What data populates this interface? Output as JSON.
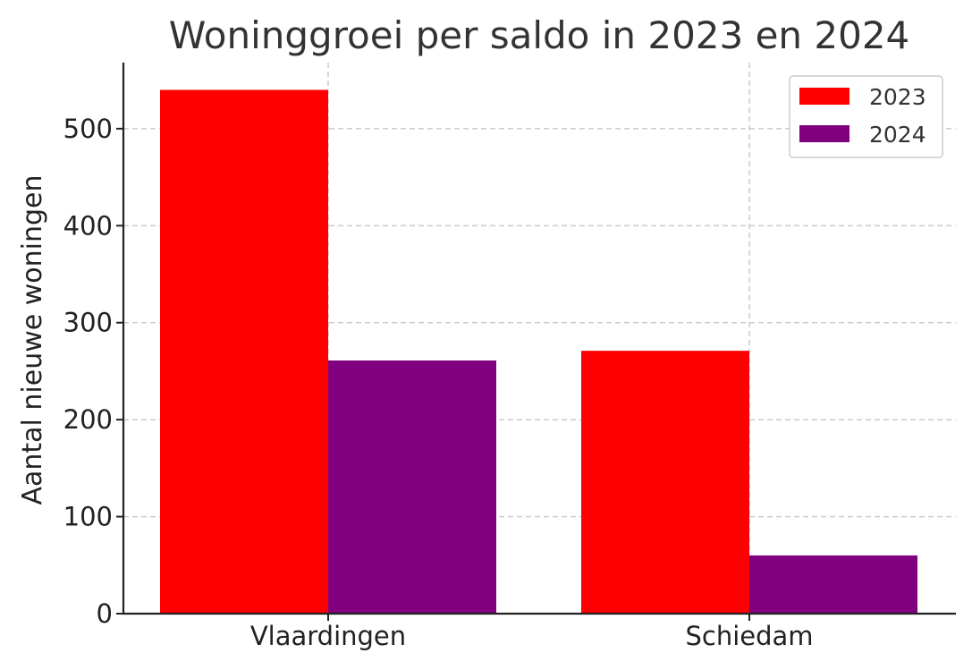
{
  "chart_data": {
    "type": "bar",
    "title": "Woninggroei per saldo in 2023 en 2024",
    "xlabel": "",
    "ylabel": "Aantal nieuwe woningen",
    "categories": [
      "Vlaardingen",
      "Schiedam"
    ],
    "series": [
      {
        "name": "2023",
        "color": "#ff0000",
        "values": [
          540,
          271
        ]
      },
      {
        "name": "2024",
        "color": "#800080",
        "values": [
          261,
          60
        ]
      }
    ],
    "ylim": [
      0,
      570
    ],
    "yticks": [
      0,
      100,
      200,
      300,
      400,
      500
    ],
    "grid": true,
    "legend_position": "top-right"
  }
}
